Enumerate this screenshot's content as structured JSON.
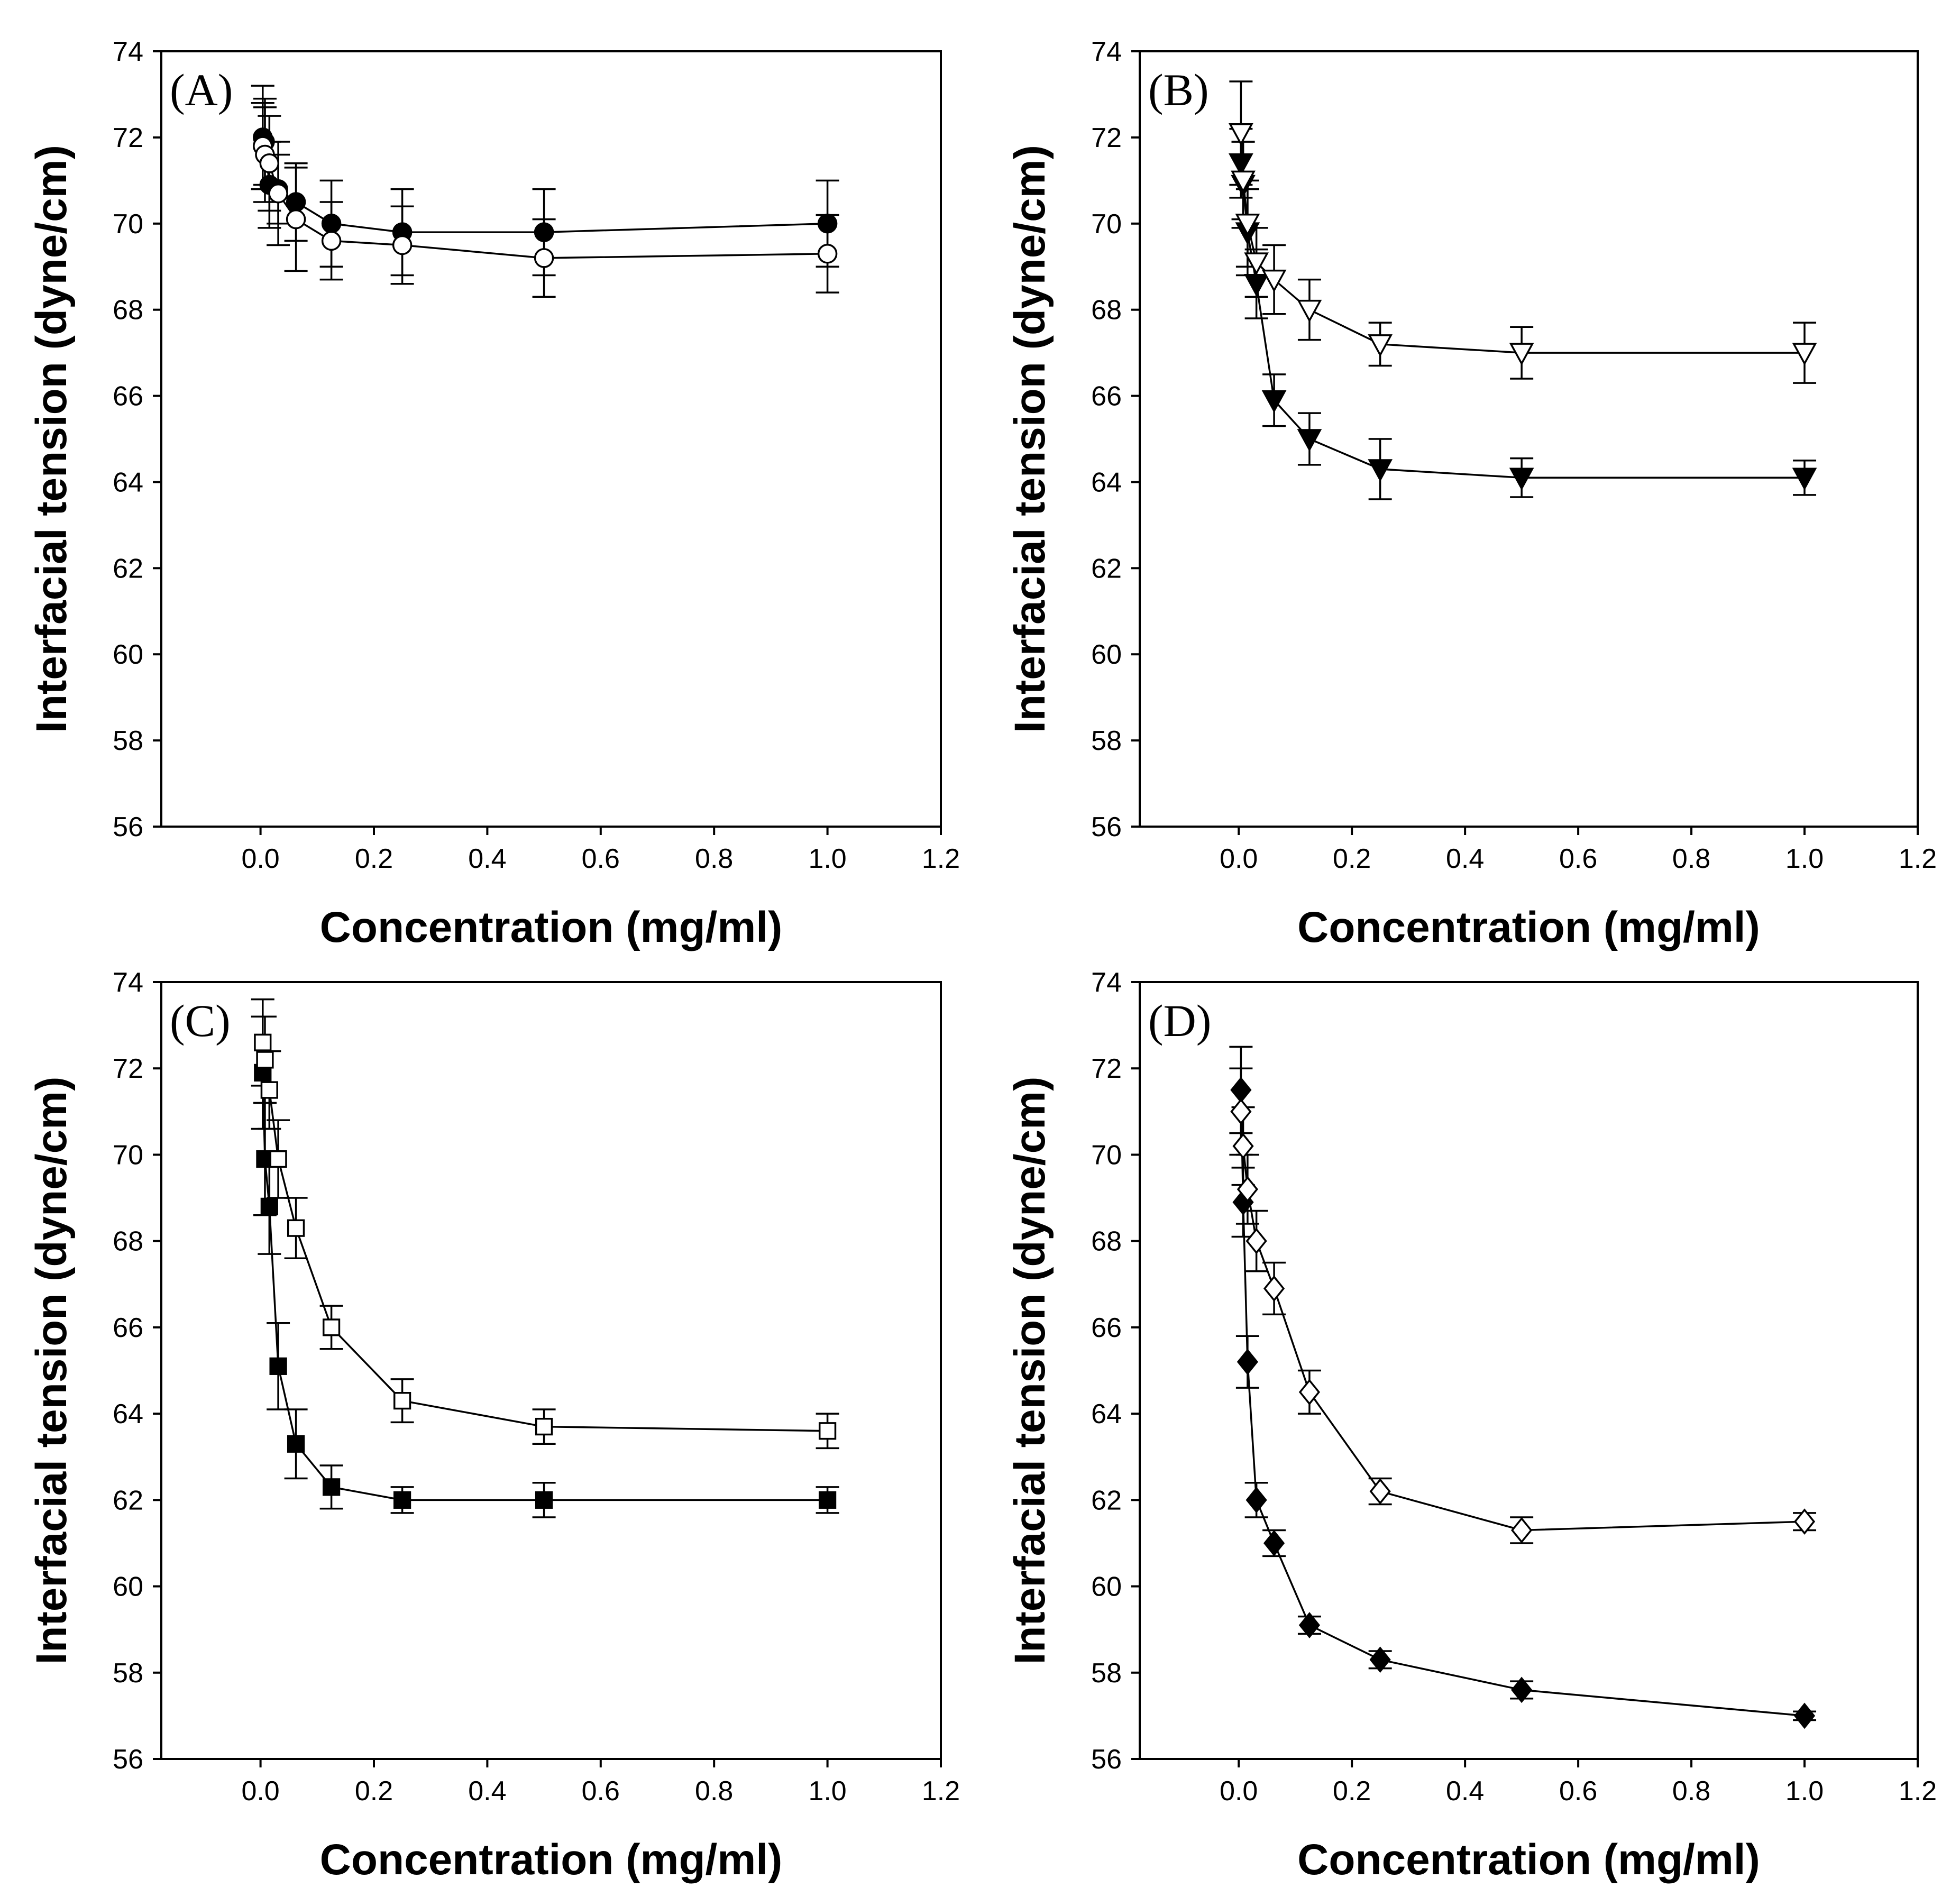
{
  "chart_data": [
    {
      "type": "line",
      "panel_label": "(A)",
      "xlabel": "Concentration (mg/ml)",
      "ylabel": "Interfacial tension (dyne/cm)",
      "xlim": [
        -0.175,
        1.2
      ],
      "ylim": [
        56,
        74
      ],
      "xticks": [
        "0.0",
        "0.2",
        "0.4",
        "0.6",
        "0.8",
        "1.0",
        "1.2"
      ],
      "yticks": [
        "56",
        "58",
        "60",
        "62",
        "64",
        "66",
        "68",
        "70",
        "72",
        "74"
      ],
      "series": [
        {
          "name": "filled circle",
          "marker": "circle",
          "fill": "#000000",
          "x": [
            0.0039,
            0.0078,
            0.0156,
            0.03125,
            0.0625,
            0.125,
            0.25,
            0.5,
            1.0
          ],
          "y": [
            72.0,
            71.9,
            70.9,
            70.8,
            70.5,
            70.0,
            69.8,
            69.8,
            70.0
          ],
          "err": [
            1.2,
            1.0,
            1.0,
            0.8,
            0.9,
            1.0,
            1.0,
            1.0,
            1.0
          ]
        },
        {
          "name": "open circle",
          "marker": "circle",
          "fill": "#ffffff",
          "x": [
            0.0039,
            0.0078,
            0.0156,
            0.03125,
            0.0625,
            0.125,
            0.25,
            0.5,
            1.0
          ],
          "y": [
            71.8,
            71.6,
            71.4,
            70.7,
            70.1,
            69.6,
            69.5,
            69.2,
            69.3
          ],
          "err": [
            1.0,
            1.1,
            1.1,
            1.2,
            1.2,
            0.9,
            0.9,
            0.9,
            0.9
          ]
        }
      ]
    },
    {
      "type": "line",
      "panel_label": "(B)",
      "xlabel": "Concentration (mg/ml)",
      "ylabel": "Interfacial tension (dyne/cm)",
      "xlim": [
        -0.175,
        1.2
      ],
      "ylim": [
        56,
        74
      ],
      "xticks": [
        "0.0",
        "0.2",
        "0.4",
        "0.6",
        "0.8",
        "1.0",
        "1.2"
      ],
      "yticks": [
        "56",
        "58",
        "60",
        "62",
        "64",
        "66",
        "68",
        "70",
        "72",
        "74"
      ],
      "series": [
        {
          "name": "filled triangle",
          "marker": "triangle-down",
          "fill": "#000000",
          "x": [
            0.0039,
            0.0078,
            0.0156,
            0.03125,
            0.0625,
            0.125,
            0.25,
            0.5,
            1.0
          ],
          "y": [
            71.4,
            70.9,
            69.8,
            68.6,
            65.9,
            65.0,
            64.3,
            64.1,
            64.1
          ],
          "err": [
            0.8,
            1.0,
            1.0,
            0.8,
            0.6,
            0.6,
            0.7,
            0.45,
            0.4
          ]
        },
        {
          "name": "open triangle",
          "marker": "triangle-down",
          "fill": "#ffffff",
          "x": [
            0.0039,
            0.0078,
            0.0156,
            0.03125,
            0.0625,
            0.125,
            0.25,
            0.5,
            1.0
          ],
          "y": [
            72.1,
            71.0,
            70.0,
            69.1,
            68.7,
            68.0,
            67.2,
            67.0,
            67.0
          ],
          "err": [
            1.2,
            0.9,
            1.0,
            0.8,
            0.8,
            0.7,
            0.5,
            0.6,
            0.7
          ]
        }
      ]
    },
    {
      "type": "line",
      "panel_label": "(C)",
      "xlabel": "Concentration (mg/ml)",
      "ylabel": "Interfacial tension (dyne/cm)",
      "xlim": [
        -0.175,
        1.2
      ],
      "ylim": [
        56,
        74
      ],
      "xticks": [
        "0.0",
        "0.2",
        "0.4",
        "0.6",
        "0.8",
        "1.0",
        "1.2"
      ],
      "yticks": [
        "56",
        "58",
        "60",
        "62",
        "64",
        "66",
        "68",
        "70",
        "72",
        "74"
      ],
      "series": [
        {
          "name": "filled square",
          "marker": "square",
          "fill": "#000000",
          "x": [
            0.0039,
            0.0078,
            0.0156,
            0.03125,
            0.0625,
            0.125,
            0.25,
            0.5,
            1.0
          ],
          "y": [
            71.9,
            69.9,
            68.8,
            65.1,
            63.3,
            62.3,
            62.0,
            62.0,
            62.0
          ],
          "err": [
            1.3,
            1.3,
            1.1,
            1.0,
            0.8,
            0.5,
            0.3,
            0.4,
            0.3
          ]
        },
        {
          "name": "open square",
          "marker": "square",
          "fill": "#ffffff",
          "x": [
            0.0039,
            0.0078,
            0.0156,
            0.03125,
            0.0625,
            0.125,
            0.25,
            0.5,
            1.0
          ],
          "y": [
            72.6,
            72.2,
            71.5,
            69.9,
            68.3,
            66.0,
            64.3,
            63.7,
            63.6
          ],
          "err": [
            1.0,
            1.0,
            0.9,
            0.9,
            0.7,
            0.5,
            0.5,
            0.4,
            0.4
          ]
        }
      ]
    },
    {
      "type": "line",
      "panel_label": "(D)",
      "xlabel": "Concentration (mg/ml)",
      "ylabel": "Interfacial tension (dyne/cm)",
      "xlim": [
        -0.175,
        1.2
      ],
      "ylim": [
        56,
        74
      ],
      "xticks": [
        "0.0",
        "0.2",
        "0.4",
        "0.6",
        "0.8",
        "1.0",
        "1.2"
      ],
      "yticks": [
        "56",
        "58",
        "60",
        "62",
        "64",
        "66",
        "68",
        "70",
        "72",
        "74"
      ],
      "series": [
        {
          "name": "filled diamond",
          "marker": "diamond",
          "fill": "#000000",
          "x": [
            0.0039,
            0.0078,
            0.0156,
            0.03125,
            0.0625,
            0.125,
            0.25,
            0.5,
            1.0
          ],
          "y": [
            71.5,
            68.9,
            65.2,
            62.0,
            61.0,
            59.1,
            58.3,
            57.6,
            57.0
          ],
          "err": [
            1.0,
            0.8,
            0.6,
            0.4,
            0.3,
            0.2,
            0.2,
            0.2,
            0.1
          ]
        },
        {
          "name": "open diamond",
          "marker": "diamond",
          "fill": "#ffffff",
          "x": [
            0.0039,
            0.0078,
            0.0156,
            0.03125,
            0.0625,
            0.125,
            0.25,
            0.5,
            1.0
          ],
          "y": [
            71.0,
            70.2,
            69.2,
            68.0,
            66.9,
            64.5,
            62.2,
            61.3,
            61.5
          ],
          "err": [
            1.0,
            0.9,
            0.8,
            0.7,
            0.6,
            0.5,
            0.3,
            0.3,
            0.2
          ]
        }
      ]
    }
  ]
}
